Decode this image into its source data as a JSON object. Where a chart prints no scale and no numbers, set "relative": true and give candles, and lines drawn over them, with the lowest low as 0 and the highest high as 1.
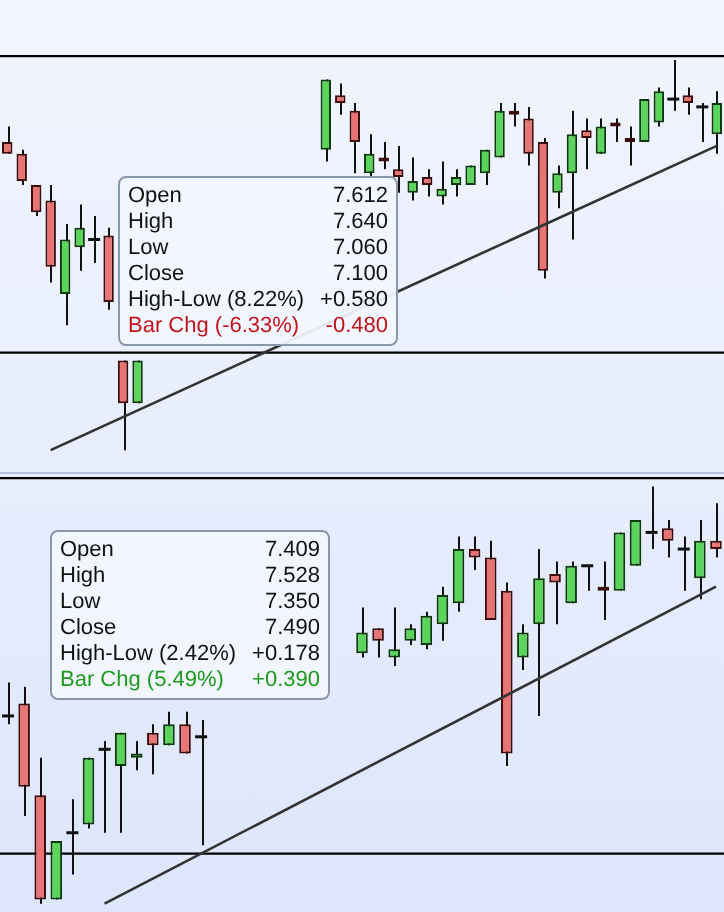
{
  "chart_data": [
    {
      "type": "candlestick",
      "relative": true,
      "legend": false,
      "categories": [
        null,
        null,
        null,
        null,
        null,
        null,
        null,
        null,
        null,
        null,
        null,
        null,
        null,
        null,
        null,
        null,
        null,
        null,
        null,
        null,
        null,
        null,
        null,
        null,
        null,
        null,
        null,
        null,
        null,
        null,
        null,
        null,
        null,
        null,
        null,
        null,
        null,
        null,
        null,
        null,
        null,
        null,
        null,
        null,
        null,
        null,
        null,
        null,
        null,
        null
      ],
      "ohlc": [
        [
          0.79,
          0.83,
          0.76,
          0.76
        ],
        [
          0.76,
          0.77,
          0.68,
          0.69
        ],
        [
          0.68,
          0.68,
          0.6,
          0.61
        ],
        [
          0.64,
          0.68,
          0.43,
          0.47
        ],
        [
          0.4,
          0.58,
          0.32,
          0.54
        ],
        [
          0.52,
          0.63,
          0.46,
          0.57
        ],
        [
          0.54,
          0.6,
          0.48,
          0.54
        ],
        [
          0.55,
          0.57,
          0.36,
          0.38
        ],
        [
          0.23,
          0.23,
          0,
          0.12
        ],
        [
          0.12,
          0.23,
          0.12,
          0.23
        ],
        null,
        null,
        null,
        null,
        null,
        null,
        null,
        null,
        null,
        null,
        null,
        null,
        [
          0.77,
          0.95,
          0.74,
          0.95
        ],
        [
          0.91,
          0.94,
          0.86,
          0.89
        ],
        [
          0.87,
          0.89,
          0.71,
          0.79
        ],
        [
          0.71,
          0.81,
          0.7,
          0.76
        ],
        [
          0.75,
          0.79,
          0.72,
          0.74
        ],
        [
          0.72,
          0.78,
          0.66,
          0.7
        ],
        [
          0.66,
          0.75,
          0.64,
          0.69
        ],
        [
          0.7,
          0.72,
          0.65,
          0.68
        ],
        [
          0.65,
          0.74,
          0.63,
          0.67
        ],
        [
          0.68,
          0.72,
          0.65,
          0.7
        ],
        [
          0.68,
          0.73,
          0.68,
          0.73
        ],
        [
          0.71,
          0.77,
          0.68,
          0.77
        ],
        [
          0.75,
          0.89,
          0.75,
          0.87
        ],
        [
          0.87,
          0.89,
          0.83,
          0.86
        ],
        [
          0.85,
          0.88,
          0.73,
          0.76
        ],
        [
          0.79,
          0.8,
          0.44,
          0.46
        ],
        [
          0.66,
          0.73,
          0.62,
          0.71
        ],
        [
          0.71,
          0.87,
          0.54,
          0.81
        ],
        [
          0.82,
          0.85,
          0.72,
          0.8
        ],
        [
          0.76,
          0.85,
          0.76,
          0.83
        ],
        [
          0.84,
          0.85,
          0.79,
          0.83
        ],
        [
          0.8,
          0.83,
          0.73,
          0.79
        ],
        [
          0.79,
          0.9,
          0.79,
          0.9
        ],
        [
          0.84,
          0.93,
          0.83,
          0.92
        ],
        [
          0.9,
          1,
          0.87,
          0.9
        ],
        [
          0.91,
          0.93,
          0.86,
          0.89
        ],
        [
          0.88,
          0.89,
          0.79,
          0.88
        ],
        [
          0.81,
          0.92,
          0.76,
          0.89
        ]
      ],
      "series": [
        {
          "type": "line",
          "color": "#333333",
          "values": [
            null,
            null,
            null,
            0,
            null,
            null,
            null,
            null,
            null,
            null,
            null,
            null,
            null,
            null,
            null,
            null,
            null,
            null,
            null,
            null,
            null,
            null,
            null,
            null,
            null,
            null,
            null,
            null,
            null,
            null,
            null,
            null,
            null,
            null,
            null,
            null,
            null,
            null,
            null,
            null,
            null,
            null,
            null,
            null,
            null,
            null,
            null,
            null,
            null,
            0.78
          ]
        }
      ],
      "ref_lines": [
        {
          "axis": "y",
          "value": 1.01,
          "color": "#000000"
        },
        {
          "axis": "y",
          "value": 0.25,
          "color": "#000000"
        }
      ],
      "annotations": [
        "Open",
        "7.612",
        "High",
        "7.640",
        "Low",
        "7.060",
        "Close",
        "7.100",
        "High-Low (8.22%)",
        "+0.580",
        "Bar Chg (-6.33%)",
        "-0.480"
      ]
    },
    {
      "type": "candlestick",
      "relative": true,
      "legend": false,
      "categories": [
        null,
        null,
        null,
        null,
        null,
        null,
        null,
        null,
        null,
        null,
        null,
        null,
        null,
        null,
        null,
        null,
        null,
        null,
        null,
        null,
        null,
        null,
        null,
        null,
        null,
        null,
        null,
        null,
        null,
        null,
        null,
        null,
        null,
        null,
        null,
        null,
        null,
        null,
        null,
        null,
        null,
        null,
        null,
        null,
        null
      ],
      "ohlc": [
        [
          0.45,
          0.53,
          0.43,
          0.45
        ],
        [
          0.48,
          0.52,
          0.21,
          0.28
        ],
        [
          0.26,
          0.35,
          0,
          0.01
        ],
        [
          0.01,
          0.15,
          0.01,
          0.15
        ],
        [
          0.17,
          0.25,
          0.07,
          0.17
        ],
        [
          0.19,
          0.35,
          0.18,
          0.35
        ],
        [
          0.37,
          0.39,
          0.17,
          0.37
        ],
        [
          0.33,
          0.41,
          0.17,
          0.41
        ],
        [
          0.35,
          0.39,
          0.32,
          0.36
        ],
        [
          0.41,
          0.43,
          0.31,
          0.38
        ],
        [
          0.38,
          0.46,
          0.38,
          0.43
        ],
        [
          0.43,
          0.46,
          0.36,
          0.36
        ],
        [
          0.4,
          0.44,
          0.14,
          0.4
        ],
        null,
        null,
        null,
        null,
        null,
        null,
        null,
        null,
        null,
        [
          0.6,
          0.71,
          0.59,
          0.65
        ],
        [
          0.66,
          0.66,
          0.59,
          0.63
        ],
        [
          0.59,
          0.71,
          0.57,
          0.61
        ],
        [
          0.63,
          0.67,
          0.62,
          0.66
        ],
        [
          0.62,
          0.7,
          0.61,
          0.69
        ],
        [
          0.67,
          0.76,
          0.63,
          0.74
        ],
        [
          0.72,
          0.88,
          0.7,
          0.85
        ],
        [
          0.85,
          0.88,
          0.8,
          0.83
        ],
        [
          0.83,
          0.87,
          0.68,
          0.68
        ],
        [
          0.75,
          0.77,
          0.33,
          0.36
        ],
        [
          0.59,
          0.67,
          0.56,
          0.65
        ],
        [
          0.67,
          0.85,
          0.45,
          0.78
        ],
        [
          0.79,
          0.82,
          0.67,
          0.77
        ],
        [
          0.72,
          0.82,
          0.72,
          0.81
        ],
        [
          0.81,
          0.81,
          0.75,
          0.81
        ],
        [
          0.76,
          0.82,
          0.68,
          0.75
        ],
        [
          0.75,
          0.89,
          0.75,
          0.89
        ],
        [
          0.81,
          0.92,
          0.81,
          0.92
        ],
        [
          0.89,
          1,
          0.85,
          0.89
        ],
        [
          0.9,
          0.92,
          0.83,
          0.87
        ],
        [
          0.85,
          0.88,
          0.75,
          0.85
        ],
        [
          0.78,
          0.92,
          0.73,
          0.87
        ],
        [
          0.87,
          0.96,
          0.83,
          0.85
        ]
      ],
      "series": [
        {
          "type": "line",
          "color": "#333333",
          "values": [
            null,
            null,
            null,
            null,
            null,
            null,
            0,
            null,
            null,
            null,
            null,
            null,
            null,
            null,
            null,
            null,
            null,
            null,
            null,
            null,
            null,
            null,
            null,
            null,
            null,
            null,
            null,
            null,
            null,
            null,
            null,
            null,
            null,
            null,
            null,
            null,
            null,
            null,
            null,
            null,
            null,
            null,
            null,
            null,
            0.76
          ]
        }
      ],
      "ref_lines": [
        {
          "axis": "y",
          "value": 1.02,
          "color": "#000000"
        },
        {
          "axis": "y",
          "value": 0.12,
          "color": "#000000"
        }
      ],
      "annotations": [
        "Open",
        "7.409",
        "High",
        "7.528",
        "Low",
        "7.350",
        "Close",
        "7.490",
        "High-Low (2.42%)",
        "+0.178",
        "Bar Chg (5.49%)",
        "+0.390"
      ]
    }
  ]
}
